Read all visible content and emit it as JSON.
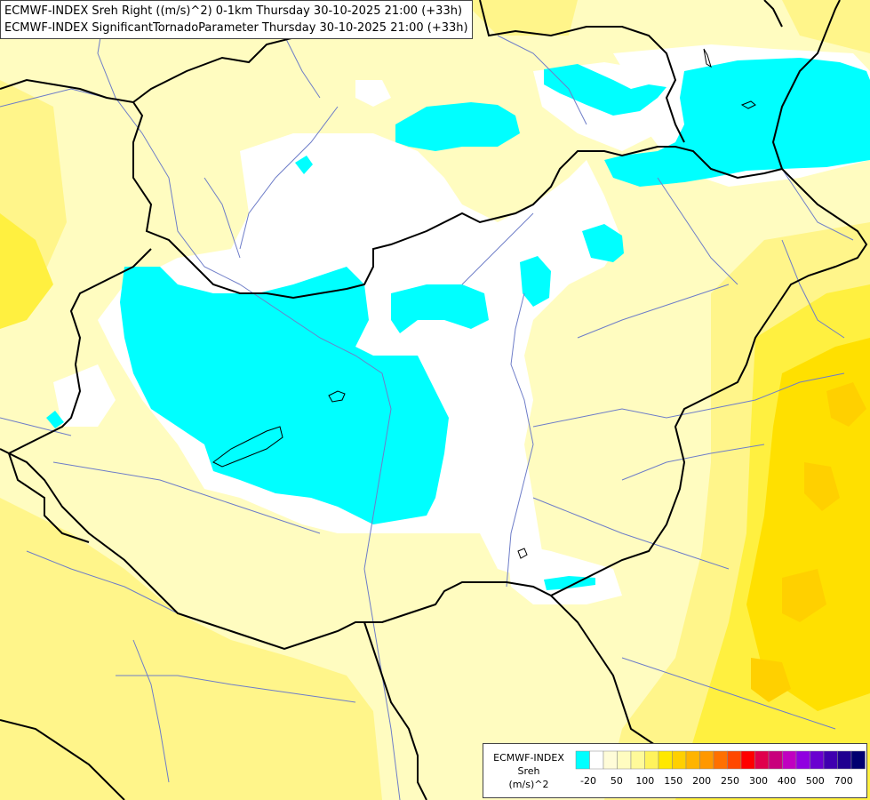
{
  "header": {
    "line1": "ECMWF-INDEX Sreh Right ((m/s)^2) 0-1km Thursday 30-10-2025 21:00 (+33h)",
    "line2": "ECMWF-INDEX SignificantTornadoParameter Thursday 30-10-2025 21:00 (+33h)"
  },
  "legend": {
    "title": "ECMWF-INDEX",
    "variable": "Sreh",
    "unit": "(m/s)^2",
    "colors": [
      "#00ffff",
      "#ffffff",
      "#fffcd8",
      "#fffcc0",
      "#fffa9a",
      "#fff35c",
      "#ffe800",
      "#ffd000",
      "#ffb400",
      "#ff9800",
      "#ff7000",
      "#ff4800",
      "#ff0000",
      "#e0004c",
      "#c8007c",
      "#c000c0",
      "#9000e0",
      "#6a00d0",
      "#4000b0",
      "#200090",
      "#000070"
    ],
    "ticks": [
      "-20",
      "50",
      "100",
      "150",
      "200",
      "250",
      "300",
      "400",
      "500",
      "700"
    ]
  },
  "map_colors": {
    "cyan": "#00ffff",
    "white": "#ffffff",
    "pale": "#fffcd8",
    "light_yellow": "#fffcc0",
    "yellow": "#fff58a",
    "strong_yellow": "#fff040",
    "gold": "#ffe000",
    "orange": "#ffd000",
    "border": "#000000",
    "river": "#6e7dc8"
  }
}
